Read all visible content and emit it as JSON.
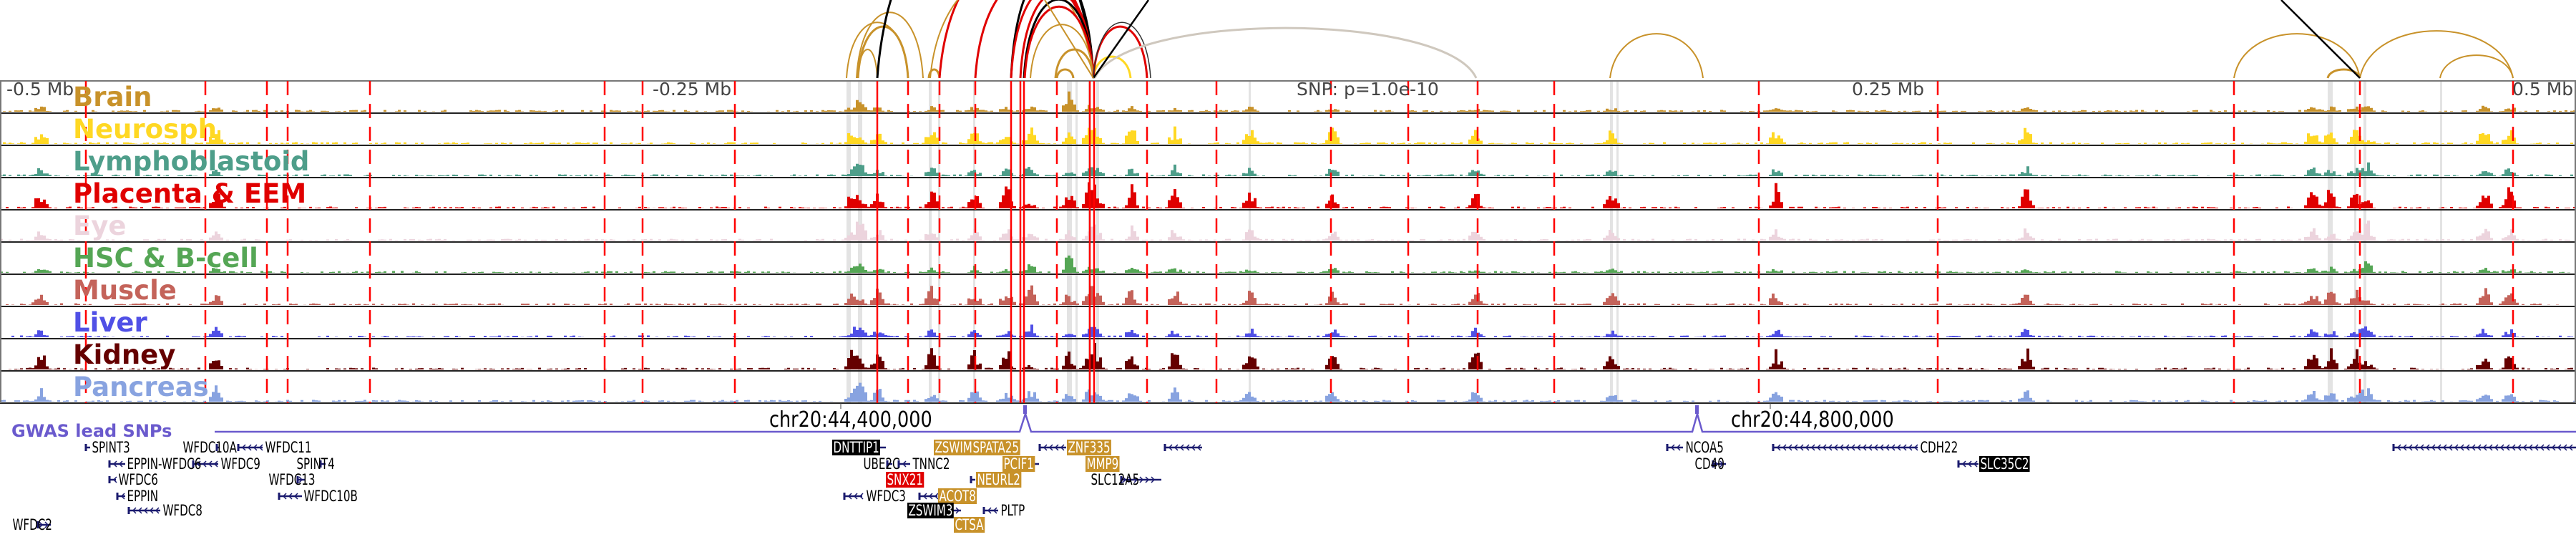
{
  "axis": {
    "left_label": "-0.5 Mb",
    "left_mid_label": "-0.25 Mb",
    "snp_label": "SNP: p=1.0e-10",
    "right_mid_label": "0.25 Mb",
    "right_label": "0.5 Mb"
  },
  "tracks": [
    {
      "label": "Brain",
      "color": "#c8922a"
    },
    {
      "label": "Neurosph",
      "color": "#ffd823"
    },
    {
      "label": "Lymphoblastoid",
      "color": "#4e9e8a"
    },
    {
      "label": "Placenta & EEM",
      "color": "#e00000"
    },
    {
      "label": "Eye",
      "color": "#ecd4dd"
    },
    {
      "label": "HSC & B-cell",
      "color": "#55a655"
    },
    {
      "label": "Muscle",
      "color": "#c4635a"
    },
    {
      "label": "Liver",
      "color": "#5050e6"
    },
    {
      "label": "Kidney",
      "color": "#650000"
    },
    {
      "label": "Pancreas",
      "color": "#88a3e0"
    }
  ],
  "coords": {
    "left": "chr20:44,400,000",
    "right": "chr20:44,800,000"
  },
  "gwas": {
    "label": "GWAS lead SNPs",
    "color": "#6a5acd"
  },
  "colors": {
    "enhancer_line": "#ff0000",
    "band": "#e3e3e3",
    "gene_strand": "#1a1a6e",
    "highlight_tan": "#c8922a",
    "highlight_black": "#000000",
    "highlight_red": "#e00000"
  },
  "genes": [
    {
      "name": "SPINT3",
      "style": "plain"
    },
    {
      "name": "WFDC10A",
      "style": "plain"
    },
    {
      "name": "WFDC11",
      "style": "plain"
    },
    {
      "name": "EPPIN-WFDC6",
      "style": "plain"
    },
    {
      "name": "WFDC9",
      "style": "plain"
    },
    {
      "name": "SPINT4",
      "style": "plain"
    },
    {
      "name": "WFDC6",
      "style": "plain"
    },
    {
      "name": "WFDC13",
      "style": "plain"
    },
    {
      "name": "EPPIN",
      "style": "plain"
    },
    {
      "name": "WFDC10B",
      "style": "plain"
    },
    {
      "name": "WFDC8",
      "style": "plain"
    },
    {
      "name": "WFDC2",
      "style": "plain"
    },
    {
      "name": "DNTTIP1",
      "style": "black"
    },
    {
      "name": "ZSWIM1",
      "style": "tan"
    },
    {
      "name": "SPATA25",
      "style": "tan"
    },
    {
      "name": "ZNF335",
      "style": "tan"
    },
    {
      "name": "UBE2C",
      "style": "plain"
    },
    {
      "name": "TNNC2",
      "style": "plain"
    },
    {
      "name": "PCIF1",
      "style": "tan"
    },
    {
      "name": "MMP9",
      "style": "tan"
    },
    {
      "name": "SNX21",
      "style": "red"
    },
    {
      "name": "NEURL2",
      "style": "tan"
    },
    {
      "name": "SLC12A5",
      "style": "plain"
    },
    {
      "name": "WFDC3",
      "style": "plain"
    },
    {
      "name": "ACOT8",
      "style": "tan"
    },
    {
      "name": "ZSWIM3",
      "style": "black"
    },
    {
      "name": "PLTP",
      "style": "plain"
    },
    {
      "name": "CTSA",
      "style": "tan"
    },
    {
      "name": "NCOA5",
      "style": "plain"
    },
    {
      "name": "CDH22",
      "style": "plain"
    },
    {
      "name": "CD40",
      "style": "plain"
    },
    {
      "name": "SLC35C2",
      "style": "black"
    }
  ]
}
